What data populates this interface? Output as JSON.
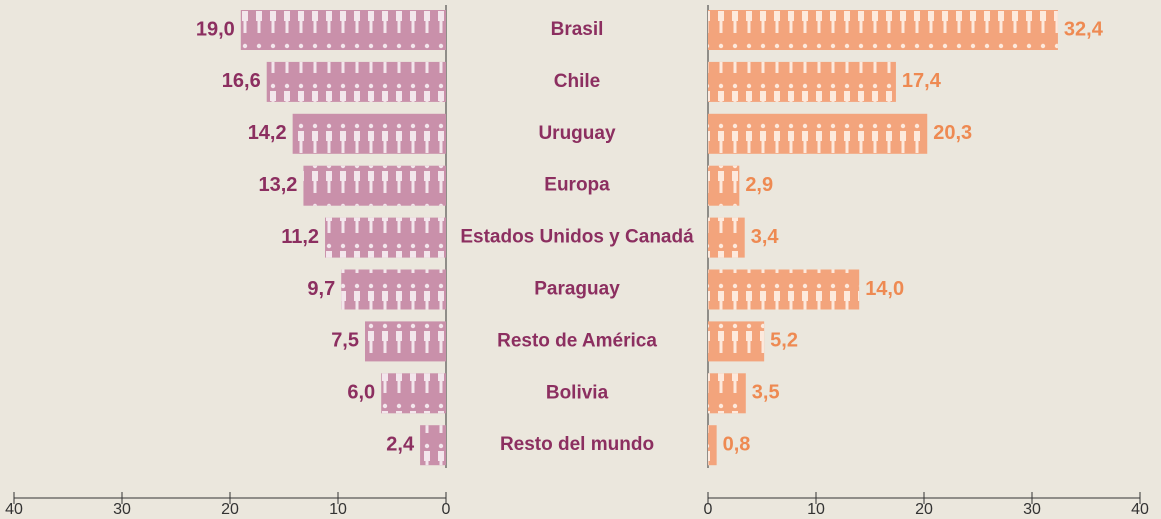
{
  "chart_data": {
    "type": "butterfly-bar",
    "categories": [
      "Brasil",
      "Chile",
      "Uruguay",
      "Europa",
      "Estados Unidos y Canadá",
      "Paraguay",
      "Resto de América",
      "Bolivia",
      "Resto del mundo"
    ],
    "series": [
      {
        "color": "#c990aa",
        "label_color": "#8c2f60",
        "side": "left",
        "values": [
          19.0,
          16.6,
          14.2,
          13.2,
          11.2,
          9.7,
          7.5,
          6.0,
          2.4
        ],
        "value_labels": [
          "19,0",
          "16,6",
          "14,2",
          "13,2",
          "11,2",
          "9,7",
          "7,5",
          "6,0",
          "2,4"
        ]
      },
      {
        "color": "#f3a47c",
        "label_color": "#ee8a52",
        "side": "right",
        "values": [
          32.4,
          17.4,
          20.3,
          2.9,
          3.4,
          14.0,
          5.2,
          3.5,
          0.8
        ],
        "value_labels": [
          "32,4",
          "17,4",
          "20,3",
          "2,9",
          "3,4",
          "14,0",
          "5,2",
          "3,5",
          "0,8"
        ]
      }
    ],
    "xlim": [
      0,
      40
    ],
    "xticks": [
      0,
      10,
      20,
      30,
      40
    ]
  }
}
